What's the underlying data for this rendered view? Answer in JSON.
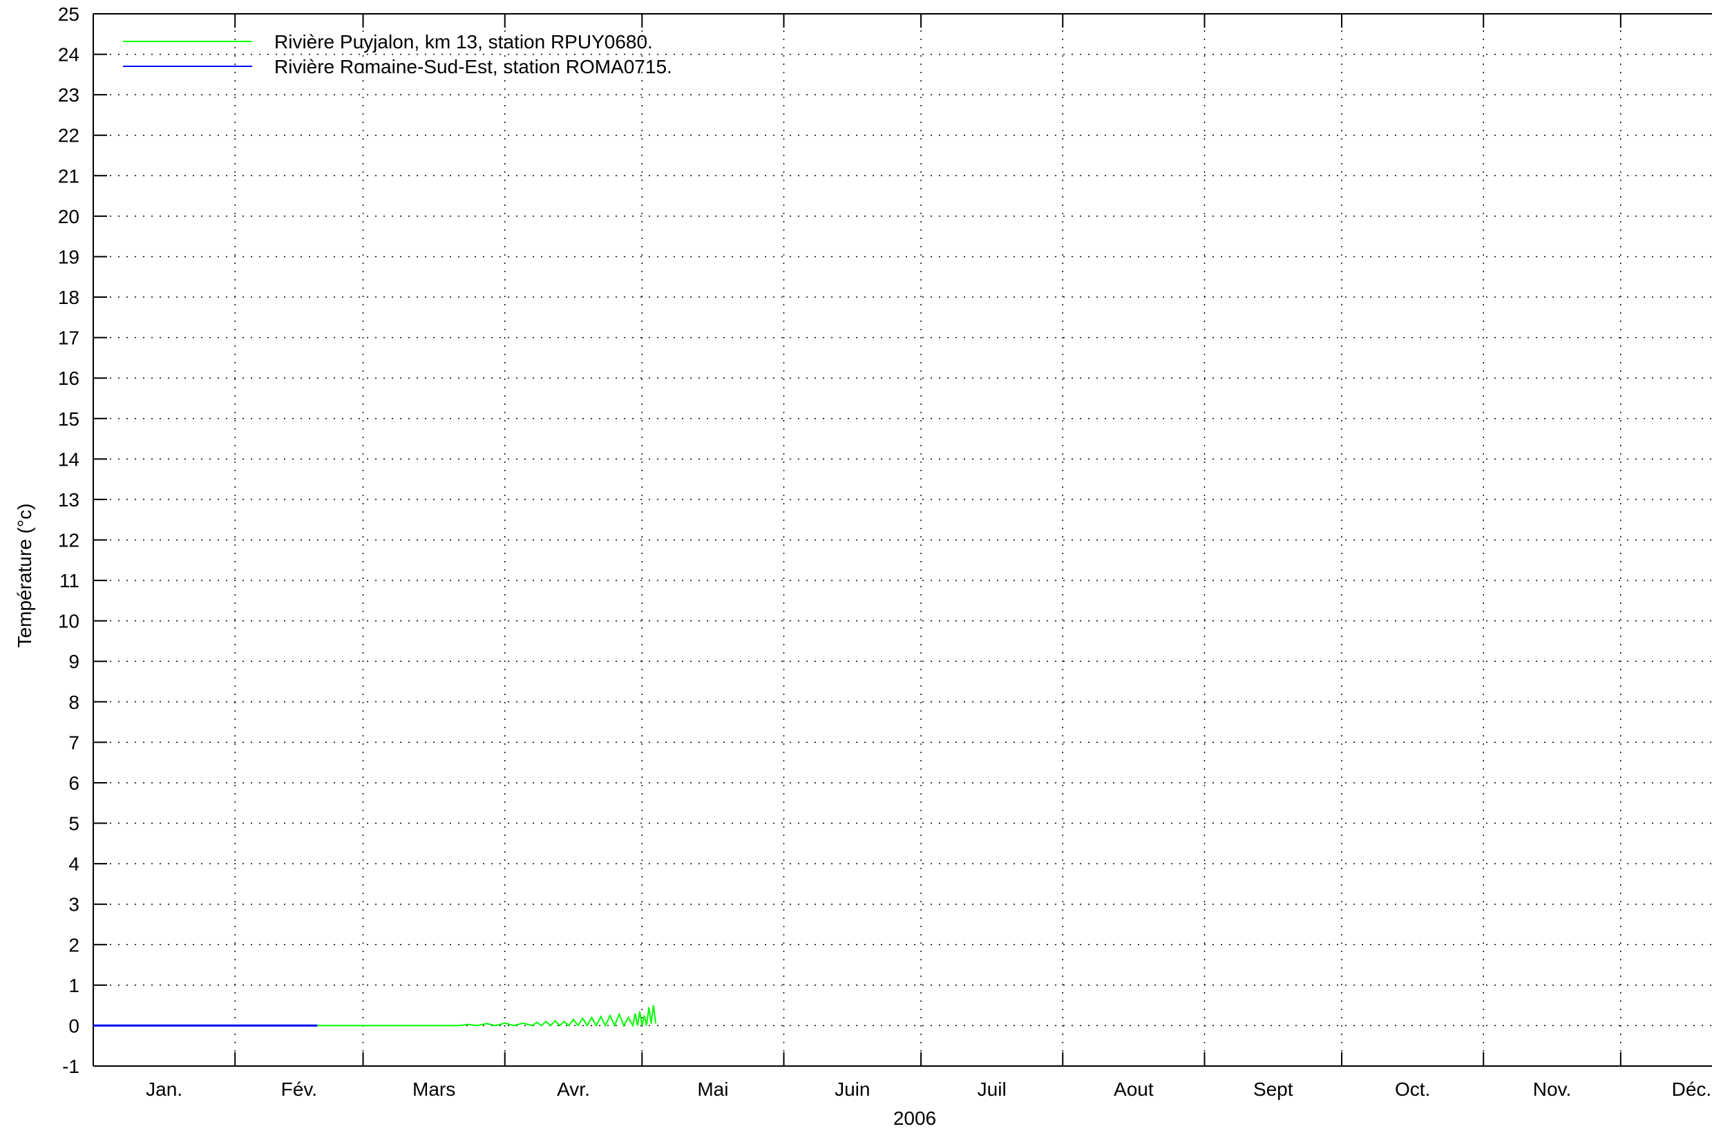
{
  "chart_data": {
    "type": "line",
    "title": "",
    "xlabel": "2006",
    "ylabel": "Température (°c)",
    "ylim": [
      -1,
      25
    ],
    "y_ticks": [
      -1,
      0,
      1,
      2,
      3,
      4,
      5,
      6,
      7,
      8,
      9,
      10,
      11,
      12,
      13,
      14,
      15,
      16,
      17,
      18,
      19,
      20,
      21,
      22,
      23,
      24,
      25
    ],
    "x_domain_days": [
      0,
      365
    ],
    "month_starts_days": [
      0,
      31,
      59,
      90,
      120,
      151,
      181,
      212,
      243,
      273,
      304,
      334,
      365
    ],
    "month_labels": [
      "Jan.",
      "Fév.",
      "Mars",
      "Avr.",
      "Mai",
      "Juin",
      "Juil",
      "Aout",
      "Sept",
      "Oct.",
      "Nov.",
      "Déc."
    ],
    "grid": true,
    "legend_position": "top-left",
    "series": [
      {
        "name": "Rivière Puyjalon, km 13, station RPUY0680.",
        "color": "#00ff00",
        "x_days": [
          49,
          55,
          60,
          65,
          70,
          75,
          80,
          82,
          84,
          86,
          88,
          90,
          92,
          94,
          96,
          97,
          98,
          99,
          100,
          101,
          102,
          103,
          104,
          105,
          106,
          107,
          108,
          109,
          110,
          111,
          112,
          113,
          114,
          115,
          116,
          117,
          118,
          118.5,
          119,
          119.5,
          120,
          120.5,
          121,
          121.5,
          122,
          122.5,
          123
        ],
        "y": [
          0,
          0,
          0,
          0,
          0,
          0,
          0,
          0.03,
          0,
          0.05,
          0,
          0.06,
          0,
          0.06,
          0,
          0.08,
          0,
          0.1,
          0,
          0.12,
          0,
          0.1,
          0,
          0.15,
          0,
          0.18,
          0,
          0.2,
          0,
          0.22,
          0,
          0.25,
          0,
          0.28,
          0,
          0.2,
          0,
          0.3,
          0,
          0.35,
          0,
          0.25,
          0,
          0.45,
          0.05,
          0.5,
          0.05
        ]
      },
      {
        "name": "Rivière Romaine-Sud-Est, station ROMA0715.",
        "color": "#0000ff",
        "x_days": [
          0,
          49
        ],
        "y": [
          0,
          0
        ]
      }
    ]
  }
}
